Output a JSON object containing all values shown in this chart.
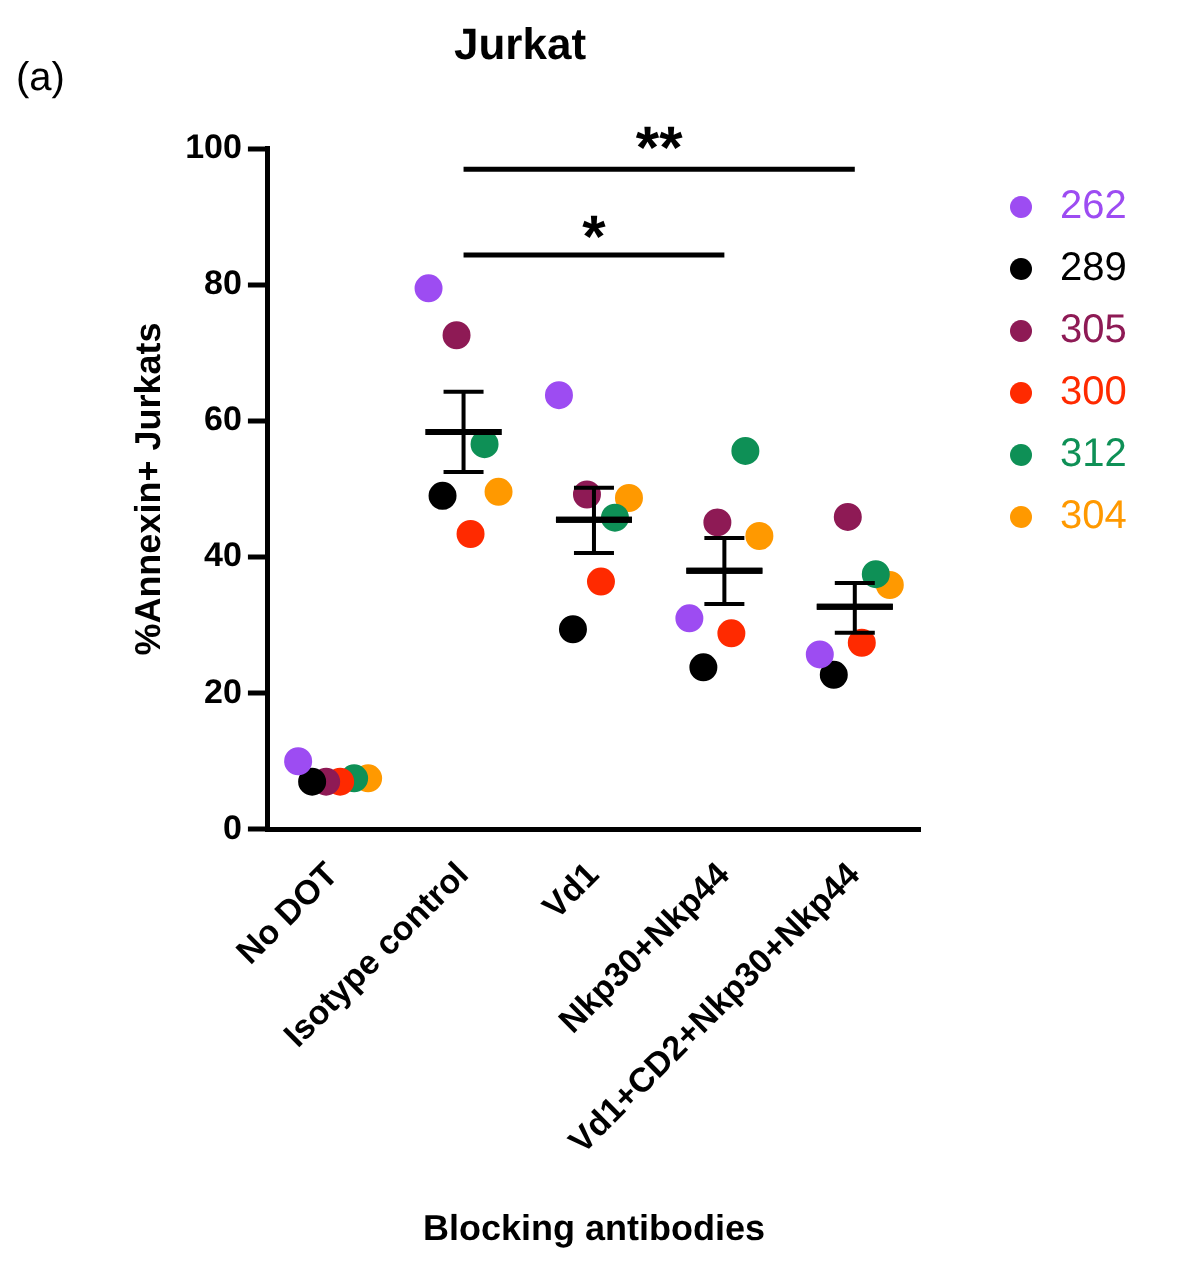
{
  "chart_data": {
    "type": "scatter",
    "title": "Jurkat",
    "ylabel": "%Annexin+ Jurkats",
    "xlabel": "Blocking antibodies",
    "annotations": [
      "(a)",
      "*",
      "**"
    ],
    "categories": [
      "No DOT",
      "Isotype control",
      "Vd1",
      "Nkp30+Nkp44",
      "Vd1+CD2+Nkp30+Nkp44"
    ],
    "ylim": [
      0,
      100
    ],
    "yticks": [
      0,
      20,
      40,
      60,
      80,
      100
    ],
    "grid": false,
    "legend": "right",
    "marker": "circle",
    "series": [
      {
        "name": "262",
        "color": "#9d4cf2",
        "x": [
          "No DOT",
          "Isotype control",
          "Vd1",
          "Nkp30+Nkp44",
          "Vd1+CD2+Nkp30+Nkp44"
        ],
        "values": [
          10,
          79.5,
          63.8,
          31,
          25.7
        ]
      },
      {
        "name": "289",
        "color": "#000000",
        "x": [
          "No DOT",
          "Isotype control",
          "Vd1",
          "Nkp30+Nkp44",
          "Vd1+CD2+Nkp30+Nkp44"
        ],
        "values": [
          7,
          49,
          29.4,
          23.8,
          22.7
        ]
      },
      {
        "name": "305",
        "color": "#8e1a55",
        "x": [
          "No DOT",
          "Isotype control",
          "Vd1",
          "Nkp30+Nkp44",
          "Vd1+CD2+Nkp30+Nkp44"
        ],
        "values": [
          7,
          72.6,
          49.2,
          45.1,
          45.9
        ]
      },
      {
        "name": "300",
        "color": "#ff2a00",
        "x": [
          "No DOT",
          "Isotype control",
          "Vd1",
          "Nkp30+Nkp44",
          "Vd1+CD2+Nkp30+Nkp44"
        ],
        "values": [
          7,
          43.4,
          36.4,
          28.8,
          27.4
        ]
      },
      {
        "name": "312",
        "color": "#0e9056",
        "x": [
          "No DOT",
          "Isotype control",
          "Vd1",
          "Nkp30+Nkp44",
          "Vd1+CD2+Nkp30+Nkp44"
        ],
        "values": [
          7.5,
          56.6,
          45.8,
          55.6,
          37.5
        ]
      },
      {
        "name": "304",
        "color": "#ff9900",
        "x": [
          "No DOT",
          "Isotype control",
          "Vd1",
          "Nkp30+Nkp44",
          "Vd1+CD2+Nkp30+Nkp44"
        ],
        "values": [
          7.5,
          49.6,
          48.7,
          43.1,
          35.9
        ]
      },
      {
        "type": "box",
        "color": "#000000",
        "boxes": [
          null,
          {
            "low": 52.5,
            "q1": 58.4,
            "median": 58.4,
            "q3": 58.4,
            "high": 64.3
          },
          {
            "low": 40.6,
            "q1": 45.5,
            "median": 45.5,
            "q3": 45.5,
            "high": 50.2
          },
          {
            "low": 33.1,
            "q1": 38,
            "median": 38,
            "q3": 38,
            "high": 42.8
          },
          {
            "low": 28.9,
            "q1": 32.7,
            "median": 32.7,
            "q3": 32.7,
            "high": 36.2
          }
        ]
      }
    ]
  }
}
